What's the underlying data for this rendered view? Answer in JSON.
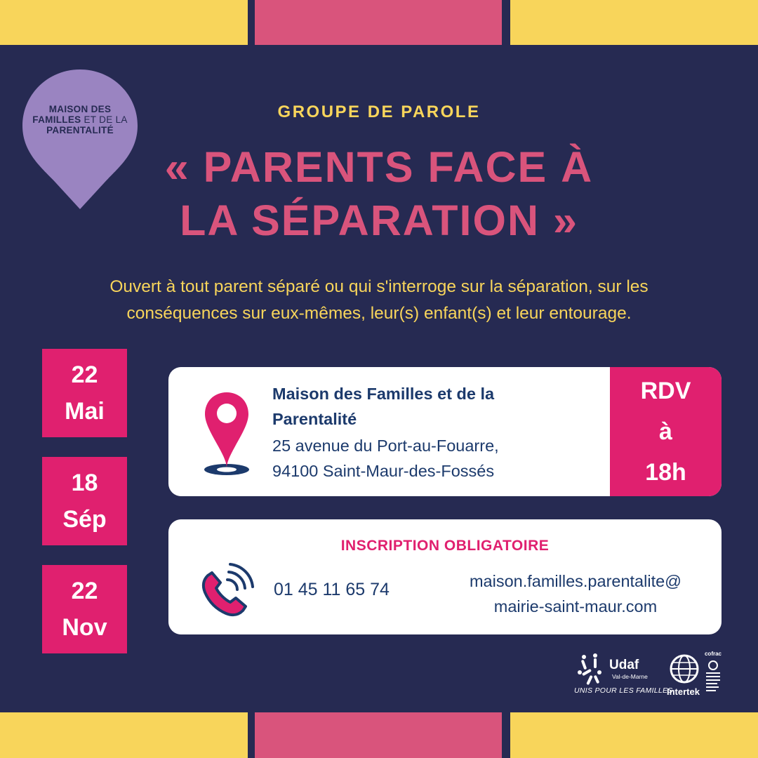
{
  "logo": {
    "line1": "MAISON DES",
    "line2_a": "FAMILLES",
    "line2_b": " ET DE LA",
    "line3": "PARENTALITÉ",
    "color": "#9a84c1"
  },
  "header": {
    "eyebrow": "GROUPE DE PAROLE",
    "title_line1": "« PARENTS FACE À",
    "title_line2": "LA SÉPARATION »"
  },
  "intro": {
    "line1": "Ouvert à tout parent séparé ou qui s'interroge sur la séparation, sur les",
    "line2": "conséquences sur eux-mêmes, leur(s) enfant(s) et leur entourage."
  },
  "dates": [
    {
      "day": "22",
      "month": "Mai"
    },
    {
      "day": "18",
      "month": "Sép"
    },
    {
      "day": "22",
      "month": "Nov"
    }
  ],
  "location": {
    "icon": "location-pin-icon",
    "name_line1": "Maison des Familles et de la",
    "name_line2": "Parentalité",
    "address_line1": "25 avenue du Port-au-Fouarre,",
    "address_line2": "94100 Saint-Maur-des-Fossés"
  },
  "rdv": {
    "line1": "RDV",
    "line2": "à",
    "line3": "18h"
  },
  "inscription": {
    "title": "INSCRIPTION OBLIGATOIRE",
    "icon": "phone-icon",
    "phone": "01 45 11 65 74",
    "email_line1": "maison.familles.parentalite@",
    "email_line2": "mairie-saint-maur.com"
  },
  "partners": {
    "udaf_name": "Udaf",
    "udaf_sub": "Val-de-Marne",
    "udaf_tagline": "UNIS POUR LES FAMILLES",
    "intertek": "Intertek",
    "cofrac": "cofrac"
  },
  "colors": {
    "background": "#262a52",
    "yellow": "#f8d55b",
    "pink": "#d9547c",
    "magenta": "#e0206f",
    "navy_text": "#1c3a6c"
  }
}
